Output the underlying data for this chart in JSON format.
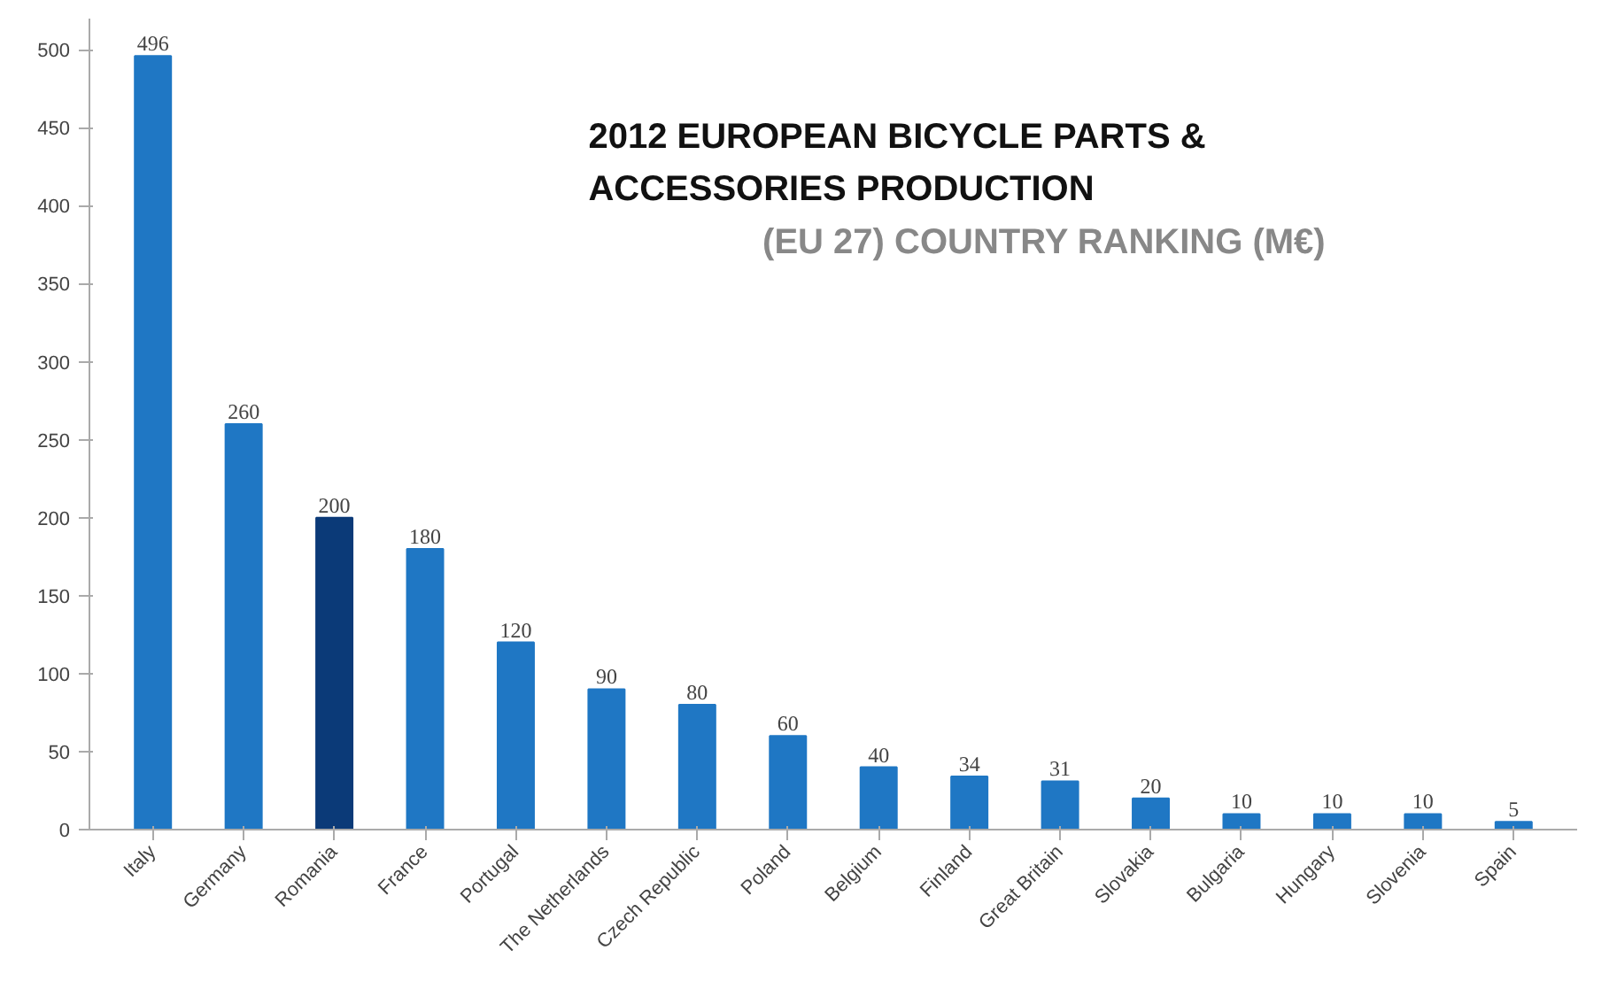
{
  "chart_data": {
    "type": "bar",
    "title": "2012 EUROPEAN BICYCLE PARTS & ACCESSORIES PRODUCTION",
    "subtitle": "(EU 27) COUNTRY RANKING (M€)",
    "categories": [
      "Italy",
      "Germany",
      "Romania",
      "France",
      "Portugal",
      "The Netherlands",
      "Czech Republic",
      "Poland",
      "Belgium",
      "Finland",
      "Great Britain",
      "Slovakia",
      "Bulgaria",
      "Hungary",
      "Slovenia",
      "Spain"
    ],
    "values": [
      496,
      260,
      200,
      180,
      120,
      90,
      80,
      60,
      40,
      34,
      31,
      20,
      10,
      10,
      10,
      5
    ],
    "colors": [
      "#1f77c4",
      "#1f77c4",
      "#0b3a78",
      "#1f77c4",
      "#1f77c4",
      "#1f77c4",
      "#1f77c4",
      "#1f77c4",
      "#1f77c4",
      "#1f77c4",
      "#1f77c4",
      "#1f77c4",
      "#1f77c4",
      "#1f77c4",
      "#1f77c4",
      "#1f77c4"
    ],
    "ylim": [
      0,
      520
    ],
    "yticks": [
      0,
      50,
      100,
      150,
      200,
      250,
      300,
      350,
      400,
      450,
      500
    ],
    "data_labels": true,
    "grid": false
  }
}
